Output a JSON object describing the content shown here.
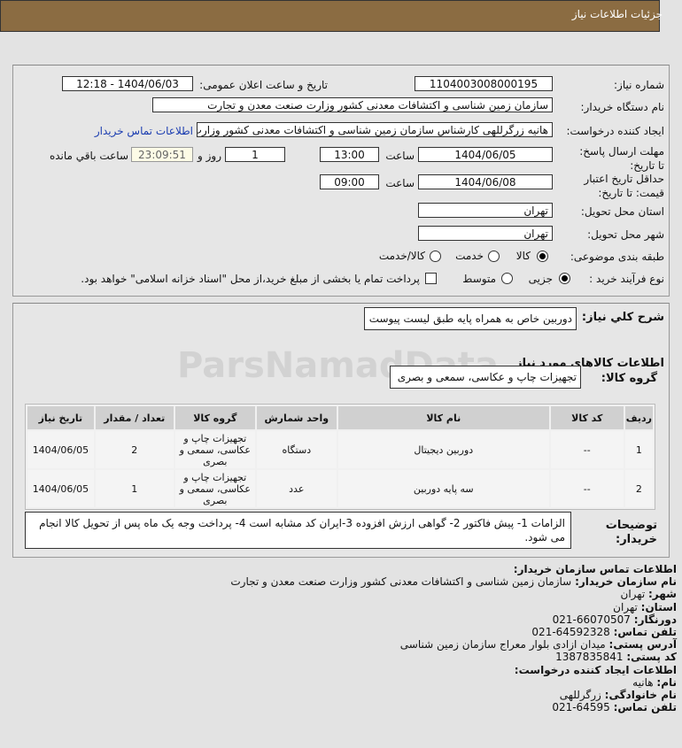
{
  "header": {
    "title": "جزئیات اطلاعات نیاز"
  },
  "form": {
    "need_number_label": "شماره نیاز:",
    "need_number": "1104003008000195",
    "announce_label": "تاریخ و ساعت اعلان عمومی:",
    "announce_value": "1404/06/03 - 12:18",
    "buyer_label": "نام دستگاه خریدار:",
    "buyer_value": "سازمان زمین شناسی و اکتشافات معدنی کشور وزارت صنعت معدن و تجارت",
    "creator_label": "ایجاد کننده درخواست:",
    "creator_value": "هانیه زرگرللهی کارشناس سازمان زمین شناسی و اکتشافات معدنی کشور وزارت",
    "contact_link": "اطلاعات تماس خریدار",
    "deadline_label": "مهلت ارسال پاسخ: تا تاریخ:",
    "deadline_date": "1404/06/05",
    "time_label": "ساعت",
    "deadline_time": "13:00",
    "days": "1",
    "days_label": "روز و",
    "remaining": "23:09:51",
    "remaining_label": "ساعت باقي مانده",
    "validity_label": "حداقل تاریخ اعتبار قیمت: تا تاریخ:",
    "validity_date": "1404/06/08",
    "validity_time": "09:00",
    "province_label": "استان محل تحویل:",
    "province": "تهران",
    "city_label": "شهر محل تحویل:",
    "city": "تهران",
    "category_label": "طبقه بندی موضوعی:",
    "category_options": [
      "کالا",
      "خدمت",
      "کالا/خدمت"
    ],
    "category_selected": "کالا",
    "process_label": "نوع فرآیند خرید :",
    "process_options": [
      "جزیی",
      "متوسط"
    ],
    "process_selected": "جزیی",
    "payment_note": "پرداخت تمام یا بخشی از مبلغ خرید،از محل \"اسناد خزانه اسلامی\" خواهد بود."
  },
  "details": {
    "summary_label": "شرح کلي نياز:",
    "summary": "دوربین خاص به همراه پایه طبق لیست پیوست",
    "goods_title": "اطلاعات كالاهاي مورد نياز",
    "group_label": "گروه کالا:",
    "group": "تجهیزات چاپ و عکاسی، سمعی و بصری",
    "table": {
      "headers": [
        "ردیف",
        "کد کالا",
        "نام کالا",
        "واحد شمارش",
        "گروه کالا",
        "تعداد / مقدار",
        "تاریخ نیاز"
      ],
      "rows": [
        [
          "1",
          "--",
          "دوربین دیجیتال",
          "دستگاه",
          "تجهیزات چاپ و عکاسی، سمعی و بصری",
          "2",
          "1404/06/05"
        ],
        [
          "2",
          "--",
          "سه پایه دوربین",
          "عدد",
          "تجهیزات چاپ و عکاسی، سمعی و بصری",
          "1",
          "1404/06/05"
        ]
      ]
    },
    "notes_label": "توضیحات خریدار:",
    "notes": "الزامات 1- پیش فاکتور 2- گواهی ارزش افزوده 3-ایران کد مشابه است 4- پرداخت وجه یک ماه پس از تحویل کالا انجام می شود."
  },
  "contact": {
    "title": "اطلاعات تماس سازمان خریدار:",
    "items": [
      [
        "نام سازمان خریدار:",
        "سازمان زمین شناسی و اکتشافات معدنی کشور وزارت صنعت معدن و تجارت"
      ],
      [
        "شهر:",
        "تهران"
      ],
      [
        "استان:",
        "تهران"
      ],
      [
        "دورنگار:",
        "021-66070507"
      ],
      [
        "تلفن تماس:",
        "021-64592328"
      ],
      [
        "آدرس پستی:",
        "میدان ازادی بلوار معراج سازمان زمین شناسی"
      ],
      [
        "کد پستی:",
        "1387835841"
      ]
    ],
    "creator_title": "اطلاعات ایجاد کننده درخواست:",
    "creator_items": [
      [
        "نام:",
        "هانیه"
      ],
      [
        "نام خانوادگی:",
        "زرگرللهی"
      ],
      [
        "تلفن تماس:",
        "021-64595"
      ]
    ]
  },
  "watermark": "ParsNamadData"
}
